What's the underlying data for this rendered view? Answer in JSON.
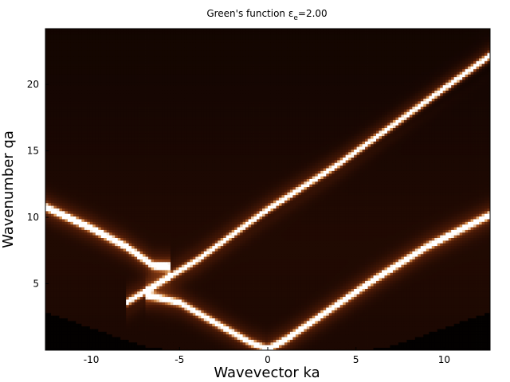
{
  "chart_data": {
    "type": "heatmap",
    "title_main": "Green's function ε",
    "title_sub": "e",
    "title_tail": "=2.00",
    "xlabel": "Wavevector ka",
    "ylabel": "Wavenumber qa",
    "xlim": [
      -12.6,
      12.6
    ],
    "ylim": [
      0,
      24.2
    ],
    "xticks": [
      -10,
      -5,
      0,
      5,
      10
    ],
    "xtick_labels": [
      "-10",
      "-5",
      "0",
      "5",
      "10"
    ],
    "yticks": [
      5,
      10,
      15,
      20
    ],
    "ytick_labels": [
      "5",
      "10",
      "15",
      "20"
    ],
    "grid": false,
    "colormap": "copper-like (black → brown → white)",
    "nx": 160,
    "ny": 120,
    "ridges": [
      {
        "kind": "upper-left-branch",
        "points": [
          [
            -12.6,
            10.8
          ],
          [
            -10,
            9.2
          ],
          [
            -8,
            7.8
          ],
          [
            -6.5,
            6.4
          ],
          [
            -5.5,
            6.3
          ]
        ],
        "strength": 1.0
      },
      {
        "kind": "light-line",
        "points": [
          [
            -8,
            3.6
          ],
          [
            -4,
            6.8
          ],
          [
            0,
            10.6
          ],
          [
            4,
            14.0
          ],
          [
            8,
            17.8
          ],
          [
            12.6,
            22.2
          ]
        ],
        "strength": 0.9
      },
      {
        "kind": "lower-left-branch",
        "points": [
          [
            -7,
            4.2
          ],
          [
            -5,
            3.6
          ],
          [
            -3,
            2.1
          ],
          [
            -1,
            0.6
          ],
          [
            0,
            0.1
          ]
        ],
        "strength": 0.85
      },
      {
        "kind": "lower-right-branch",
        "points": [
          [
            0,
            0.1
          ],
          [
            1,
            0.8
          ],
          [
            3,
            2.6
          ],
          [
            6,
            5.3
          ],
          [
            9,
            7.8
          ],
          [
            12.6,
            10.2
          ]
        ],
        "strength": 0.95
      }
    ],
    "dark_band": {
      "points": [
        [
          -8,
          3.4
        ],
        [
          0,
          10.3
        ],
        [
          12.6,
          21.4
        ]
      ]
    },
    "dark_floor": {
      "k_abs_min": 7.0,
      "q_max_at_edge": 2.6
    }
  }
}
